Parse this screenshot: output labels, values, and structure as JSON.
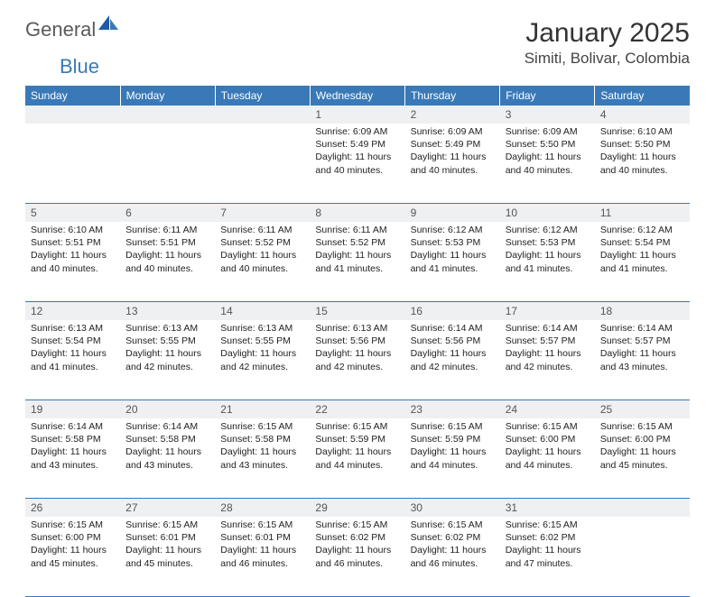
{
  "logo": {
    "general": "General",
    "blue": "Blue"
  },
  "title": "January 2025",
  "location": "Simiti, Bolivar, Colombia",
  "colors": {
    "header_bg": "#3a79b7",
    "header_text": "#ffffff",
    "daynum_bg": "#eef0f2",
    "rule": "#3a79b7"
  },
  "day_headers": [
    "Sunday",
    "Monday",
    "Tuesday",
    "Wednesday",
    "Thursday",
    "Friday",
    "Saturday"
  ],
  "weeks": [
    [
      {
        "n": "",
        "sr": "",
        "ss": "",
        "dl": ""
      },
      {
        "n": "",
        "sr": "",
        "ss": "",
        "dl": ""
      },
      {
        "n": "",
        "sr": "",
        "ss": "",
        "dl": ""
      },
      {
        "n": "1",
        "sr": "6:09 AM",
        "ss": "5:49 PM",
        "dl": "11 hours and 40 minutes."
      },
      {
        "n": "2",
        "sr": "6:09 AM",
        "ss": "5:49 PM",
        "dl": "11 hours and 40 minutes."
      },
      {
        "n": "3",
        "sr": "6:09 AM",
        "ss": "5:50 PM",
        "dl": "11 hours and 40 minutes."
      },
      {
        "n": "4",
        "sr": "6:10 AM",
        "ss": "5:50 PM",
        "dl": "11 hours and 40 minutes."
      }
    ],
    [
      {
        "n": "5",
        "sr": "6:10 AM",
        "ss": "5:51 PM",
        "dl": "11 hours and 40 minutes."
      },
      {
        "n": "6",
        "sr": "6:11 AM",
        "ss": "5:51 PM",
        "dl": "11 hours and 40 minutes."
      },
      {
        "n": "7",
        "sr": "6:11 AM",
        "ss": "5:52 PM",
        "dl": "11 hours and 40 minutes."
      },
      {
        "n": "8",
        "sr": "6:11 AM",
        "ss": "5:52 PM",
        "dl": "11 hours and 41 minutes."
      },
      {
        "n": "9",
        "sr": "6:12 AM",
        "ss": "5:53 PM",
        "dl": "11 hours and 41 minutes."
      },
      {
        "n": "10",
        "sr": "6:12 AM",
        "ss": "5:53 PM",
        "dl": "11 hours and 41 minutes."
      },
      {
        "n": "11",
        "sr": "6:12 AM",
        "ss": "5:54 PM",
        "dl": "11 hours and 41 minutes."
      }
    ],
    [
      {
        "n": "12",
        "sr": "6:13 AM",
        "ss": "5:54 PM",
        "dl": "11 hours and 41 minutes."
      },
      {
        "n": "13",
        "sr": "6:13 AM",
        "ss": "5:55 PM",
        "dl": "11 hours and 42 minutes."
      },
      {
        "n": "14",
        "sr": "6:13 AM",
        "ss": "5:55 PM",
        "dl": "11 hours and 42 minutes."
      },
      {
        "n": "15",
        "sr": "6:13 AM",
        "ss": "5:56 PM",
        "dl": "11 hours and 42 minutes."
      },
      {
        "n": "16",
        "sr": "6:14 AM",
        "ss": "5:56 PM",
        "dl": "11 hours and 42 minutes."
      },
      {
        "n": "17",
        "sr": "6:14 AM",
        "ss": "5:57 PM",
        "dl": "11 hours and 42 minutes."
      },
      {
        "n": "18",
        "sr": "6:14 AM",
        "ss": "5:57 PM",
        "dl": "11 hours and 43 minutes."
      }
    ],
    [
      {
        "n": "19",
        "sr": "6:14 AM",
        "ss": "5:58 PM",
        "dl": "11 hours and 43 minutes."
      },
      {
        "n": "20",
        "sr": "6:14 AM",
        "ss": "5:58 PM",
        "dl": "11 hours and 43 minutes."
      },
      {
        "n": "21",
        "sr": "6:15 AM",
        "ss": "5:58 PM",
        "dl": "11 hours and 43 minutes."
      },
      {
        "n": "22",
        "sr": "6:15 AM",
        "ss": "5:59 PM",
        "dl": "11 hours and 44 minutes."
      },
      {
        "n": "23",
        "sr": "6:15 AM",
        "ss": "5:59 PM",
        "dl": "11 hours and 44 minutes."
      },
      {
        "n": "24",
        "sr": "6:15 AM",
        "ss": "6:00 PM",
        "dl": "11 hours and 44 minutes."
      },
      {
        "n": "25",
        "sr": "6:15 AM",
        "ss": "6:00 PM",
        "dl": "11 hours and 45 minutes."
      }
    ],
    [
      {
        "n": "26",
        "sr": "6:15 AM",
        "ss": "6:00 PM",
        "dl": "11 hours and 45 minutes."
      },
      {
        "n": "27",
        "sr": "6:15 AM",
        "ss": "6:01 PM",
        "dl": "11 hours and 45 minutes."
      },
      {
        "n": "28",
        "sr": "6:15 AM",
        "ss": "6:01 PM",
        "dl": "11 hours and 46 minutes."
      },
      {
        "n": "29",
        "sr": "6:15 AM",
        "ss": "6:02 PM",
        "dl": "11 hours and 46 minutes."
      },
      {
        "n": "30",
        "sr": "6:15 AM",
        "ss": "6:02 PM",
        "dl": "11 hours and 46 minutes."
      },
      {
        "n": "31",
        "sr": "6:15 AM",
        "ss": "6:02 PM",
        "dl": "11 hours and 47 minutes."
      },
      {
        "n": "",
        "sr": "",
        "ss": "",
        "dl": ""
      }
    ]
  ],
  "labels": {
    "sunrise": "Sunrise:",
    "sunset": "Sunset:",
    "daylight": "Daylight:"
  }
}
